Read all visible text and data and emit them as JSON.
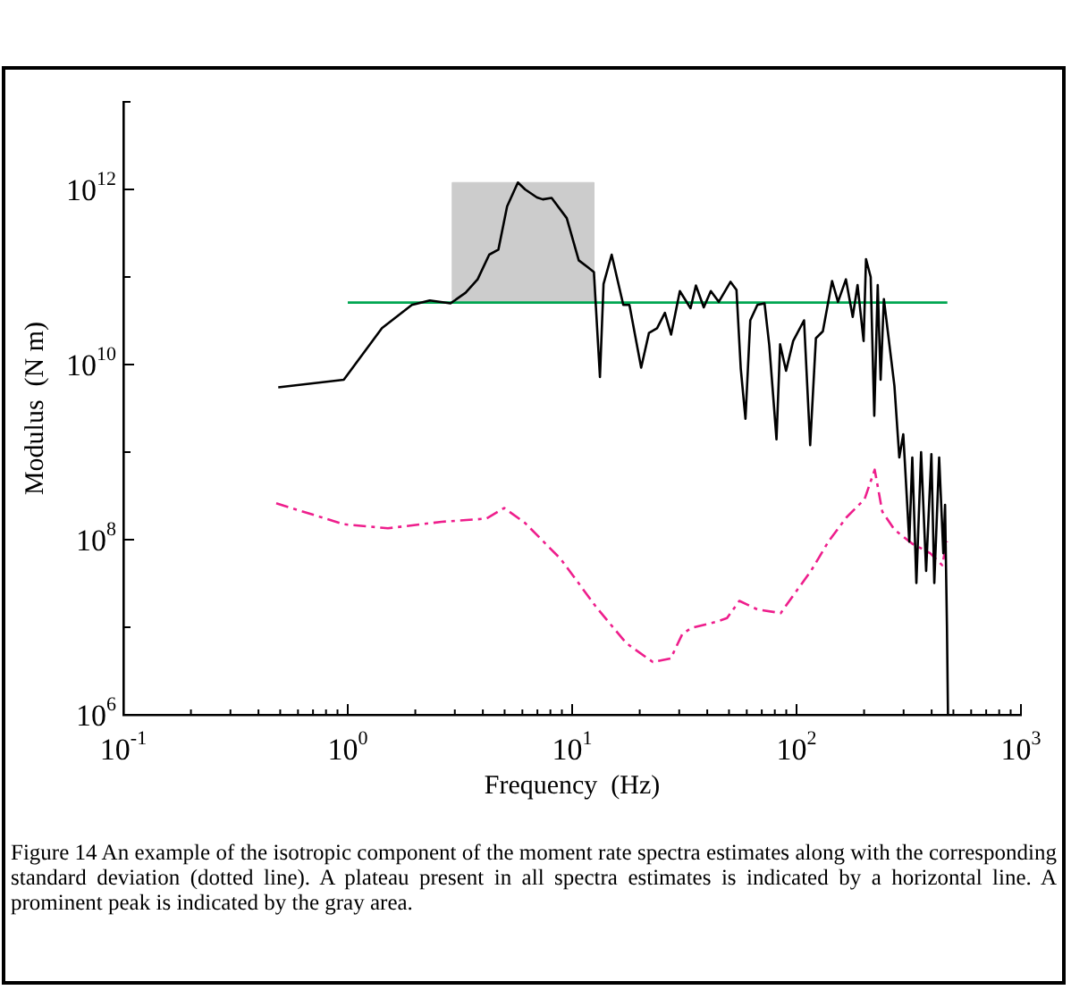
{
  "chart_data": {
    "type": "line",
    "xlabel": "Frequency  (Hz)",
    "ylabel": "Modulus  (N m)",
    "log": "xy",
    "marker": "none",
    "grid": false,
    "legend": false,
    "xlim": [
      0.1,
      1000
    ],
    "ylim": [
      1000000.0,
      10000000000000.0
    ],
    "xticks": [
      {
        "value": 0.1,
        "label": "10$^{-1}$"
      },
      {
        "value": 0.2,
        "label": null
      },
      {
        "value": 0.3,
        "label": null
      },
      {
        "value": 0.4,
        "label": null
      },
      {
        "value": 0.5,
        "label": null
      },
      {
        "value": 0.6,
        "label": null
      },
      {
        "value": 0.7,
        "label": null
      },
      {
        "value": 0.8,
        "label": null
      },
      {
        "value": 0.9,
        "label": null
      },
      {
        "value": 1,
        "label": "10$^{0}$"
      },
      {
        "value": 2,
        "label": null
      },
      {
        "value": 3,
        "label": null
      },
      {
        "value": 4,
        "label": null
      },
      {
        "value": 5,
        "label": null
      },
      {
        "value": 6,
        "label": null
      },
      {
        "value": 7,
        "label": null
      },
      {
        "value": 8,
        "label": null
      },
      {
        "value": 9,
        "label": null
      },
      {
        "value": 10,
        "label": "10$^{1}$"
      },
      {
        "value": 20,
        "label": null
      },
      {
        "value": 30,
        "label": null
      },
      {
        "value": 40,
        "label": null
      },
      {
        "value": 50,
        "label": null
      },
      {
        "value": 60,
        "label": null
      },
      {
        "value": 70,
        "label": null
      },
      {
        "value": 80,
        "label": null
      },
      {
        "value": 90,
        "label": null
      },
      {
        "value": 100,
        "label": "10$^{2}$"
      },
      {
        "value": 200,
        "label": null
      },
      {
        "value": 300,
        "label": null
      },
      {
        "value": 400,
        "label": null
      },
      {
        "value": 500,
        "label": null
      },
      {
        "value": 600,
        "label": null
      },
      {
        "value": 700,
        "label": null
      },
      {
        "value": 800,
        "label": null
      },
      {
        "value": 900,
        "label": null
      },
      {
        "value": 1000,
        "label": "10$^{3}$"
      }
    ],
    "yticks": [
      {
        "value": 1000000.0,
        "label": "10$^{6}$"
      },
      {
        "value": 10000000.0,
        "label": null
      },
      {
        "value": 100000000.0,
        "label": "10$^{8}$"
      },
      {
        "value": 1000000000.0,
        "label": null
      },
      {
        "value": 10000000000.0,
        "label": "10$^{10}$"
      },
      {
        "value": 100000000000.0,
        "label": null
      },
      {
        "value": 1000000000000.0,
        "label": "10$^{12}$"
      },
      {
        "value": 10000000000000.0,
        "label": null
      }
    ],
    "series": [
      {
        "type": "area",
        "color": "#cccccc",
        "x": [
          2.92,
          2.92,
          12.5,
          12.5
        ],
        "values": [
          51000000000.0,
          1200000000000.0,
          1200000000000.0,
          51000000000.0
        ]
      },
      {
        "color": "#000000",
        "line_style": "solid",
        "x": [
          0.49,
          0.96,
          1.42,
          1.93,
          2.32,
          2.87,
          3.35,
          3.79,
          4.27,
          4.69,
          5.13,
          5.73,
          6.17,
          6.97,
          7.4,
          8.1,
          9.46,
          10.7,
          11.7,
          12.5,
          13.3,
          13.8,
          15.0,
          16.9,
          18,
          20.3,
          22,
          23.9,
          25.9,
          27.6,
          30.2,
          33.7,
          35.6,
          38.6,
          41.5,
          45,
          50.8,
          54,
          56.4,
          59.2,
          62.2,
          66.9,
          72,
          75.6,
          81.4,
          84.5,
          89.8,
          96.6,
          108,
          115,
          122,
          131,
          144,
          153,
          166,
          178,
          187,
          199,
          204,
          214,
          222,
          230,
          237,
          245,
          273,
          287,
          299,
          318,
          328,
          342,
          359,
          378,
          399,
          411,
          432,
          451,
          459,
          468,
          473
        ],
        "values": [
          5500000000.0,
          6700000000.0,
          26000000000.0,
          48000000000.0,
          54000000000.0,
          50000000000.0,
          66000000000.0,
          94000000000.0,
          180000000000.0,
          205000000000.0,
          640000000000.0,
          1200000000000.0,
          1000000000000.0,
          810000000000.0,
          770000000000.0,
          800000000000.0,
          470000000000.0,
          155000000000.0,
          130000000000.0,
          114000000000.0,
          7200000000.0,
          83000000000.0,
          180000000000.0,
          48000000000.0,
          48000000000.0,
          9200000000.0,
          23000000000.0,
          26000000000.0,
          39000000000.0,
          22000000000.0,
          69000000000.0,
          44000000000.0,
          80000000000.0,
          45000000000.0,
          69000000000.0,
          52000000000.0,
          88000000000.0,
          71000000000.0,
          9100000000.0,
          2400000000.0,
          32000000000.0,
          48000000000.0,
          50000000000.0,
          16600000000.0,
          1400000000.0,
          17000000000.0,
          8500000000.0,
          18600000000.0,
          32000000000.0,
          1200000000.0,
          20000000000.0,
          24000000000.0,
          90000000000.0,
          52000000000.0,
          94000000000.0,
          35000000000.0,
          81000000000.0,
          18600000000.0,
          160000000000.0,
          100000000000.0,
          2600000000.0,
          81000000000.0,
          6700000000.0,
          56000000000.0,
          5700000000.0,
          870000000.0,
          1600000000.0,
          95000000.0,
          870000000.0,
          32000000.0,
          1000000000.0,
          44000000.0,
          950000000.0,
          32000000.0,
          870000000.0,
          70000000.0,
          250000000.0,
          10500000.0,
          1000000.0
        ]
      },
      {
        "color": "#ee1e8c",
        "line_style": "dashed",
        "x": [
          0.48,
          0.96,
          1.51,
          2.62,
          4.15,
          4.98,
          6.17,
          8.9,
          12.8,
          17.4,
          22.9,
          27.5,
          31,
          34,
          43.6,
          49,
          55.6,
          66.8,
          85,
          96.6,
          116,
          139,
          167,
          201,
          223,
          241,
          273,
          328,
          394,
          446,
          468
        ],
        "values": [
          260000000.0,
          150000000.0,
          135000000.0,
          160000000.0,
          174000000.0,
          230000000.0,
          155000000.0,
          60000000.0,
          17000000.0,
          6600000.0,
          4000000.0,
          4400000.0,
          8400000.0,
          9800000.0,
          11500000.0,
          12700000.0,
          20000000.0,
          16000000.0,
          14500000.0,
          23000000.0,
          44000000.0,
          96000000.0,
          180000000.0,
          290000000.0,
          630000000.0,
          210000000.0,
          130000000.0,
          90000000.0,
          70000000.0,
          51000000.0,
          96000000.0
        ]
      },
      {
        "color": "#00a651",
        "line_style": "solid",
        "x": [
          1.0,
          470
        ],
        "values": [
          51000000000.0,
          51000000000.0
        ]
      }
    ],
    "annotations": [
      "Figure 14  An example of the isotropic component of the moment rate spectra estimates along with the corresponding standard deviation (dotted line). A plateau present in all spectra estimates is indicated by a horizontal line. A prominent peak is indicated by the gray area."
    ]
  }
}
